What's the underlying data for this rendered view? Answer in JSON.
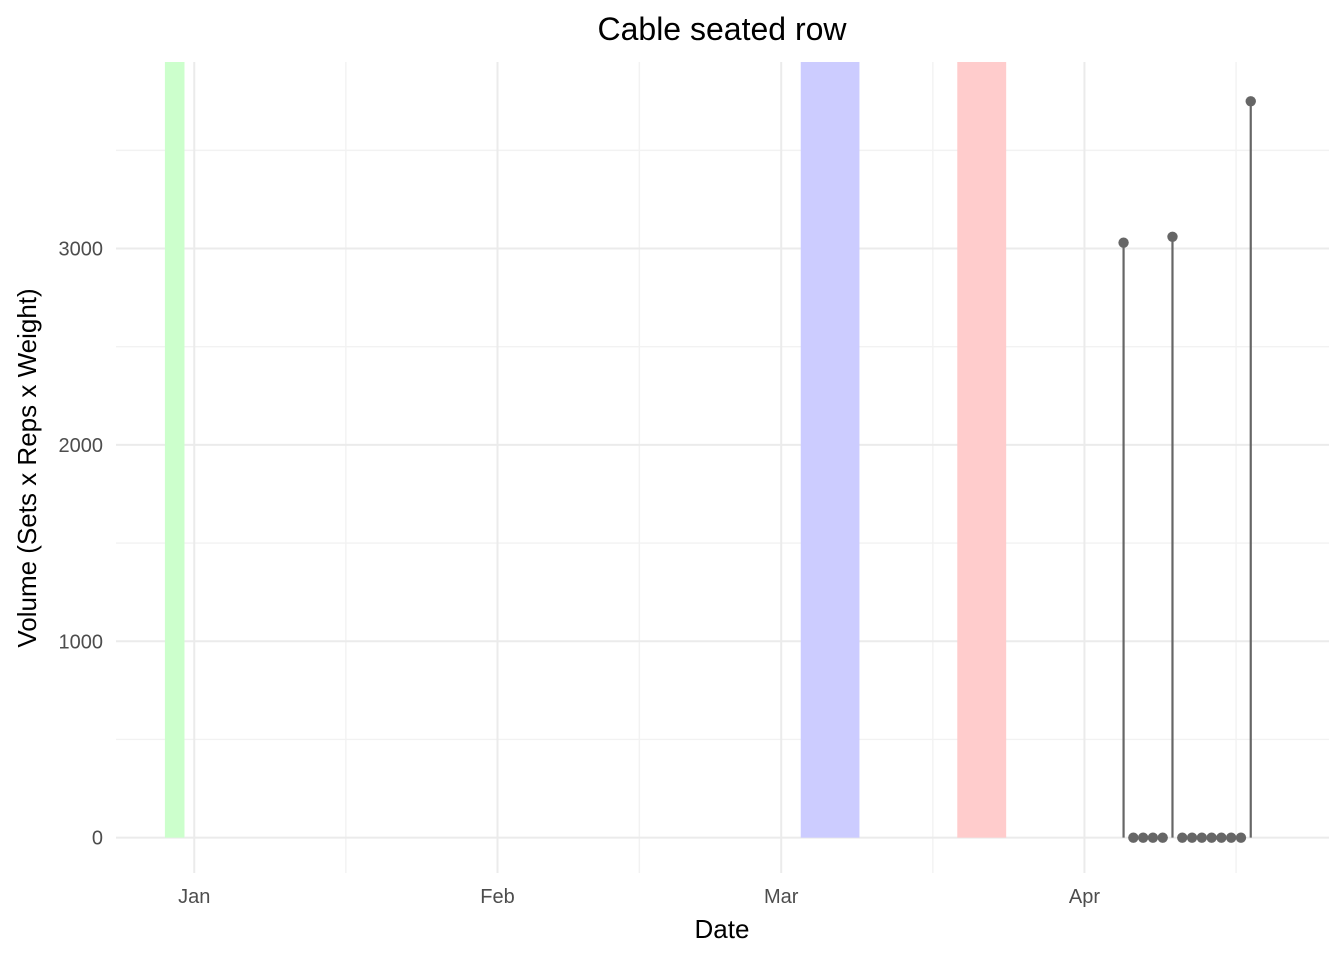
{
  "chart_data": {
    "type": "scatter",
    "title": "Cable seated row",
    "xlabel": "Date",
    "ylabel": "Volume (Sets x Reps x Weight)",
    "x_ticks": [
      "Jan",
      "Feb",
      "Mar",
      "Apr"
    ],
    "y_ticks": [
      "0",
      "1000",
      "2000",
      "3000"
    ],
    "ylim": [
      -180,
      3950
    ],
    "xlim": [
      "2023-12-24",
      "2024-04-26"
    ],
    "grid": true,
    "style": "lollipop",
    "shaded_bands": [
      {
        "start": "2023-12-29",
        "end": "2023-12-31",
        "color": "#ccffcc"
      },
      {
        "start": "2024-03-03",
        "end": "2024-03-09",
        "color": "#ccccff"
      },
      {
        "start": "2024-03-19",
        "end": "2024-03-24",
        "color": "#ffcccc"
      }
    ],
    "series": [
      {
        "color": "#666666",
        "points": [
          {
            "x": "2024-04-05",
            "y": 3030
          },
          {
            "x": "2024-04-06",
            "y": 0
          },
          {
            "x": "2024-04-07",
            "y": 0
          },
          {
            "x": "2024-04-08",
            "y": 0
          },
          {
            "x": "2024-04-09",
            "y": 0
          },
          {
            "x": "2024-04-10",
            "y": 3060
          },
          {
            "x": "2024-04-11",
            "y": 0
          },
          {
            "x": "2024-04-12",
            "y": 0
          },
          {
            "x": "2024-04-13",
            "y": 0
          },
          {
            "x": "2024-04-14",
            "y": 0
          },
          {
            "x": "2024-04-15",
            "y": 0
          },
          {
            "x": "2024-04-16",
            "y": 0
          },
          {
            "x": "2024-04-17",
            "y": 0
          },
          {
            "x": "2024-04-18",
            "y": 3750
          }
        ]
      }
    ]
  }
}
